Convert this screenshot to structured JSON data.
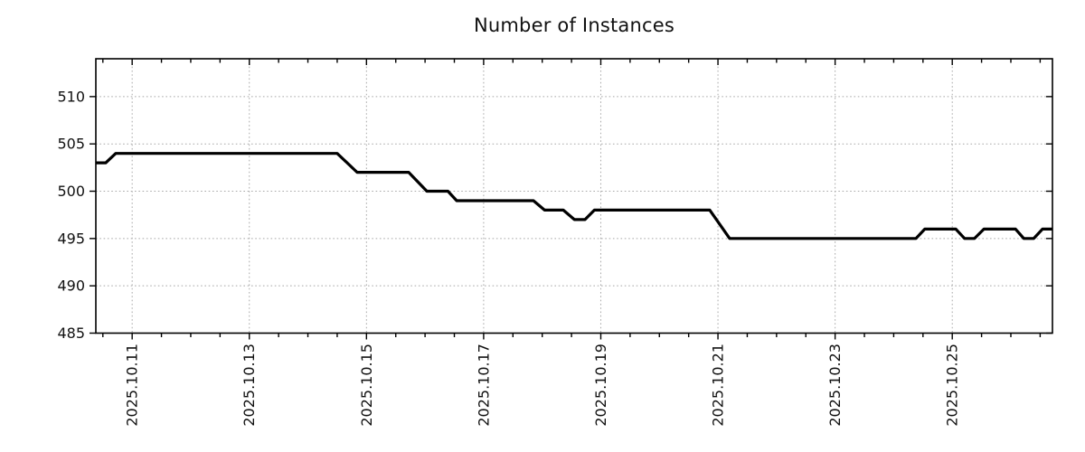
{
  "page": {
    "background": "#ffffff"
  },
  "chart_data": {
    "type": "line",
    "title": "Number of Instances",
    "legend_position": "none",
    "grid": {
      "show": true,
      "style": "dotted",
      "color": "#a8a8a8"
    },
    "colors": {
      "line": "#000000",
      "frame": "#000000",
      "tick": "#000000",
      "text": "#111111",
      "background": "#ffffff"
    },
    "x_axis": {
      "unit": "days (t = days since 2025.10.10 00:00)",
      "range": [
        0.38,
        16.71
      ],
      "minor_tick_step": 0.5,
      "label_rotation": -90,
      "major_ticks": [
        {
          "pos": 1,
          "label": "2025.10.11"
        },
        {
          "pos": 3,
          "label": "2025.10.13"
        },
        {
          "pos": 5,
          "label": "2025.10.15"
        },
        {
          "pos": 7,
          "label": "2025.10.17"
        },
        {
          "pos": 9,
          "label": "2025.10.19"
        },
        {
          "pos": 11,
          "label": "2025.10.21"
        },
        {
          "pos": 13,
          "label": "2025.10.23"
        },
        {
          "pos": 15,
          "label": "2025.10.25"
        }
      ]
    },
    "y_axis": {
      "range": [
        485,
        514
      ],
      "major_ticks": [
        485,
        490,
        495,
        500,
        505,
        510
      ],
      "tick_labels": [
        "485",
        "490",
        "495",
        "500",
        "505",
        "510"
      ]
    },
    "series": [
      {
        "name": "instances",
        "color": "#000000",
        "stroke_width": 3.2,
        "points": [
          [
            0.38,
            503
          ],
          [
            0.55,
            503
          ],
          [
            0.72,
            504
          ],
          [
            4.5,
            504
          ],
          [
            4.84,
            502
          ],
          [
            5.72,
            502
          ],
          [
            6.03,
            500
          ],
          [
            6.39,
            500
          ],
          [
            6.54,
            499
          ],
          [
            7.85,
            499
          ],
          [
            8.04,
            498
          ],
          [
            8.36,
            498
          ],
          [
            8.55,
            497
          ],
          [
            8.73,
            497
          ],
          [
            8.89,
            498
          ],
          [
            10.86,
            498
          ],
          [
            11.2,
            495
          ],
          [
            14.38,
            495
          ],
          [
            14.53,
            496
          ],
          [
            15.06,
            496
          ],
          [
            15.21,
            495
          ],
          [
            15.38,
            495
          ],
          [
            15.54,
            496
          ],
          [
            16.08,
            496
          ],
          [
            16.22,
            495
          ],
          [
            16.39,
            495
          ],
          [
            16.54,
            496
          ],
          [
            16.71,
            496
          ]
        ]
      }
    ]
  }
}
